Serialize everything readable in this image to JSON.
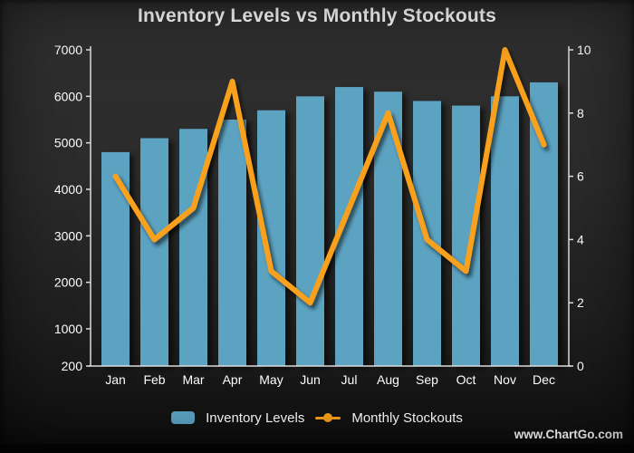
{
  "title": "Inventory Levels vs Monthly Stockouts",
  "watermark": "www.ChartGo.com",
  "legend": {
    "inventory_label": "Inventory Levels",
    "stockouts_label": "Monthly Stockouts"
  },
  "colors": {
    "bar": "#5BA3C2",
    "line": "#F9A01B",
    "text": "#FFFFFF",
    "axis": "#DCDCDC",
    "background_top": "#2F2F2F",
    "background_bottom": "#0A0A0A"
  },
  "chart_data": {
    "type": "bar",
    "subtype": "combo-bar-line-dual-axis",
    "title": "Inventory Levels vs Monthly Stockouts",
    "categories": [
      "Jan",
      "Feb",
      "Mar",
      "Apr",
      "May",
      "Jun",
      "Jul",
      "Aug",
      "Sep",
      "Oct",
      "Nov",
      "Dec"
    ],
    "series": [
      {
        "name": "Inventory Levels",
        "type": "bar",
        "axis": "left",
        "values": [
          4800,
          5100,
          5300,
          5500,
          5700,
          6000,
          6200,
          6100,
          5900,
          5800,
          6000,
          6300
        ]
      },
      {
        "name": "Monthly Stockouts",
        "type": "line",
        "axis": "right",
        "values": [
          6,
          4,
          5,
          9,
          3,
          2,
          5,
          8,
          4,
          3,
          10,
          7
        ]
      }
    ],
    "left_axis": {
      "min": 200,
      "max": 7000,
      "tick_labels": [
        "7000",
        "6000",
        "5000",
        "4000",
        "3000",
        "2000",
        "1000",
        "200"
      ],
      "tick_values": [
        7000,
        6000,
        5000,
        4000,
        3000,
        2000,
        1000,
        200
      ]
    },
    "right_axis": {
      "min": 0,
      "max": 10,
      "tick_labels": [
        "10",
        "8",
        "6",
        "4",
        "2",
        "0"
      ],
      "tick_values": [
        10,
        8,
        6,
        4,
        2,
        0
      ]
    },
    "xlabel": "",
    "ylabel_left": "",
    "ylabel_right": "",
    "grid": false,
    "legend_position": "bottom"
  }
}
